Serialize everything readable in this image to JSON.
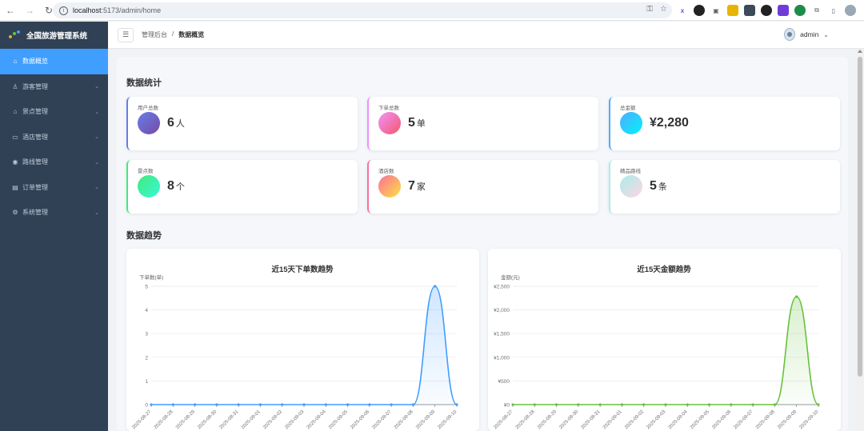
{
  "browser": {
    "host": "localhost",
    "path": ":5173/admin/home"
  },
  "sidebar": {
    "brand": "全国旅游管理系统",
    "items": [
      {
        "label": "数据概览",
        "icon": "home-icon",
        "active": true
      },
      {
        "label": "游客管理",
        "icon": "user-icon"
      },
      {
        "label": "景点管理",
        "icon": "house-icon"
      },
      {
        "label": "酒店管理",
        "icon": "building-icon"
      },
      {
        "label": "路线管理",
        "icon": "location-icon"
      },
      {
        "label": "订单管理",
        "icon": "document-icon"
      },
      {
        "label": "系统管理",
        "icon": "gear-icon"
      }
    ]
  },
  "header": {
    "breadcrumb_root": "管理后台",
    "breadcrumb_sep": "/",
    "breadcrumb_current": "数据概览",
    "username": "admin"
  },
  "stats": {
    "title": "数据统计",
    "cards": [
      {
        "label": "用户总数",
        "value": "6",
        "unit": "人",
        "colors": [
          "#667eea",
          "#764ba2"
        ],
        "accent": "#667eea"
      },
      {
        "label": "下单总数",
        "value": "5",
        "unit": "单",
        "colors": [
          "#f093fb",
          "#f5576c"
        ],
        "accent": "#f093fb"
      },
      {
        "label": "总金额",
        "value": "¥2,280",
        "unit": "",
        "colors": [
          "#4facfe",
          "#00f2fe"
        ],
        "accent": "#4facfe"
      },
      {
        "label": "景点数",
        "value": "8",
        "unit": "个",
        "colors": [
          "#43e97b",
          "#38f9d7"
        ],
        "accent": "#43e97b"
      },
      {
        "label": "酒店数",
        "value": "7",
        "unit": "家",
        "colors": [
          "#fa709a",
          "#fee140"
        ],
        "accent": "#fa709a"
      },
      {
        "label": "精品路线",
        "value": "5",
        "unit": "条",
        "colors": [
          "#a8edea",
          "#fed6e3"
        ],
        "accent": "#a8edea"
      }
    ]
  },
  "trends": {
    "title": "数据趋势"
  },
  "chart_data": [
    {
      "type": "line",
      "title": "近15天下单数趋势",
      "ylabel": "下单数(单)",
      "xlabel": "",
      "ylim": [
        0,
        5
      ],
      "yticks": [
        "0",
        "1",
        "2",
        "3",
        "4",
        "5"
      ],
      "color": "#409eff",
      "categories": [
        "2025-08-27",
        "2025-08-28",
        "2025-08-29",
        "2025-08-30",
        "2025-08-31",
        "2025-09-01",
        "2025-09-02",
        "2025-09-03",
        "2025-09-04",
        "2025-09-05",
        "2025-09-06",
        "2025-09-07",
        "2025-09-08",
        "2025-09-09",
        "2025-09-10"
      ],
      "values": [
        0,
        0,
        0,
        0,
        0,
        0,
        0,
        0,
        0,
        0,
        0,
        0,
        0,
        5,
        0
      ]
    },
    {
      "type": "line",
      "title": "近15天金额趋势",
      "ylabel": "金额(元)",
      "xlabel": "",
      "ylim": [
        0,
        2500
      ],
      "yticks": [
        "¥0",
        "¥500",
        "¥1,000",
        "¥1,500",
        "¥2,000",
        "¥2,500"
      ],
      "color": "#67c23a",
      "categories": [
        "2025-08-27",
        "2025-08-28",
        "2025-08-29",
        "2025-08-30",
        "2025-08-31",
        "2025-09-01",
        "2025-09-02",
        "2025-09-03",
        "2025-09-04",
        "2025-09-05",
        "2025-09-06",
        "2025-09-07",
        "2025-09-08",
        "2025-09-09",
        "2025-09-10"
      ],
      "values": [
        0,
        0,
        0,
        0,
        0,
        0,
        0,
        0,
        0,
        0,
        0,
        0,
        0,
        2280,
        0
      ]
    }
  ]
}
